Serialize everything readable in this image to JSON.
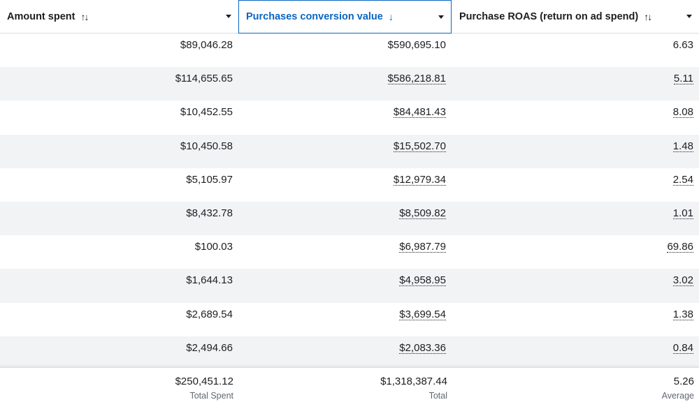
{
  "header": {
    "columns": [
      {
        "label": "Amount spent",
        "sort_icon": "↑↓"
      },
      {
        "label": "Purchases conversion value",
        "sort_icon": "↓"
      },
      {
        "label": "Purchase ROAS (return on ad spend)",
        "sort_icon": "↑↓"
      }
    ]
  },
  "colors": {
    "active_column": "#0a66c2",
    "row_alt_bg": "#f2f3f5",
    "text": "#1c1e21",
    "muted": "#606770"
  },
  "rows": [
    {
      "amount_spent": "$89,046.28",
      "conversion_value": "$590,695.10",
      "roas": "6.63"
    },
    {
      "amount_spent": "$114,655.65",
      "conversion_value": "$586,218.81",
      "roas": "5.11"
    },
    {
      "amount_spent": "$10,452.55",
      "conversion_value": "$84,481.43",
      "roas": "8.08"
    },
    {
      "amount_spent": "$10,450.58",
      "conversion_value": "$15,502.70",
      "roas": "1.48"
    },
    {
      "amount_spent": "$5,105.97",
      "conversion_value": "$12,979.34",
      "roas": "2.54"
    },
    {
      "amount_spent": "$8,432.78",
      "conversion_value": "$8,509.82",
      "roas": "1.01"
    },
    {
      "amount_spent": "$100.03",
      "conversion_value": "$6,987.79",
      "roas": "69.86"
    },
    {
      "amount_spent": "$1,644.13",
      "conversion_value": "$4,958.95",
      "roas": "3.02"
    },
    {
      "amount_spent": "$2,689.54",
      "conversion_value": "$3,699.54",
      "roas": "1.38"
    },
    {
      "amount_spent": "$2,494.66",
      "conversion_value": "$2,083.36",
      "roas": "0.84"
    }
  ],
  "footer": {
    "amount_spent": {
      "value": "$250,451.12",
      "label": "Total Spent"
    },
    "conversion_value": {
      "value": "$1,318,387.44",
      "label": "Total"
    },
    "roas": {
      "value": "5.26",
      "label": "Average"
    }
  }
}
